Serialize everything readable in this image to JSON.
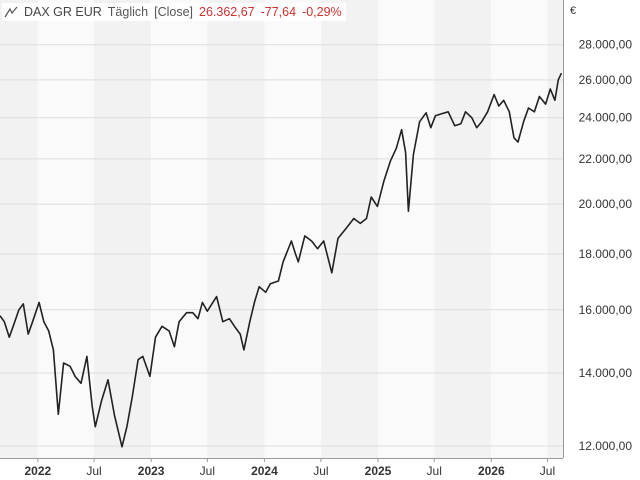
{
  "header": {
    "icon": "line-chart-icon",
    "name": "DAX GR EUR",
    "interval": "Täglich",
    "type": "[Close]",
    "last": "26.362,67",
    "change": "-77,64",
    "change_pct": "-0,29%"
  },
  "colors": {
    "line": "#222222",
    "band": "#f2f2f2",
    "grid": "#dddddd",
    "negative": "#d0312d"
  },
  "chart_data": {
    "type": "line",
    "currency": "€",
    "y_scale": "log",
    "ylim": [
      11700,
      29500
    ],
    "x_range": [
      "2021-09-01",
      "2026-08-20"
    ],
    "y_ticks": [
      {
        "value": 12000,
        "label": "12.000,00"
      },
      {
        "value": 14000,
        "label": "14.000,00"
      },
      {
        "value": 16000,
        "label": "16.000,00"
      },
      {
        "value": 18000,
        "label": "18.000,00"
      },
      {
        "value": 20000,
        "label": "20.000,00"
      },
      {
        "value": 22000,
        "label": "22.000,00"
      },
      {
        "value": 24000,
        "label": "24.000,00"
      },
      {
        "value": 26000,
        "label": "26.000,00"
      },
      {
        "value": 28000,
        "label": "28.000,00"
      }
    ],
    "x_ticks": [
      {
        "date": "2022-01-01",
        "label": "2022",
        "bold": true
      },
      {
        "date": "2022-07-01",
        "label": "Jul",
        "bold": false
      },
      {
        "date": "2023-01-01",
        "label": "2023",
        "bold": true
      },
      {
        "date": "2023-07-01",
        "label": "Jul",
        "bold": false
      },
      {
        "date": "2024-01-01",
        "label": "2024",
        "bold": true
      },
      {
        "date": "2024-07-01",
        "label": "Jul",
        "bold": false
      },
      {
        "date": "2025-01-01",
        "label": "2025",
        "bold": true
      },
      {
        "date": "2025-07-01",
        "label": "Jul",
        "bold": false
      },
      {
        "date": "2026-01-01",
        "label": "2026",
        "bold": true
      },
      {
        "date": "2026-07-01",
        "label": "Jul",
        "bold": false
      }
    ],
    "grid": true,
    "series": [
      {
        "values": [
          [
            "2021-09-01",
            15800
          ],
          [
            "2021-09-15",
            15600
          ],
          [
            "2021-10-01",
            15100
          ],
          [
            "2021-10-15",
            15500
          ],
          [
            "2021-11-01",
            16000
          ],
          [
            "2021-11-15",
            16200
          ],
          [
            "2021-12-01",
            15200
          ],
          [
            "2021-12-15",
            15600
          ],
          [
            "2022-01-05",
            16250
          ],
          [
            "2022-01-20",
            15600
          ],
          [
            "2022-02-05",
            15300
          ],
          [
            "2022-02-20",
            14700
          ],
          [
            "2022-03-08",
            12830
          ],
          [
            "2022-03-25",
            14300
          ],
          [
            "2022-04-15",
            14200
          ],
          [
            "2022-05-01",
            13900
          ],
          [
            "2022-05-20",
            13700
          ],
          [
            "2022-06-08",
            14500
          ],
          [
            "2022-06-25",
            13050
          ],
          [
            "2022-07-05",
            12500
          ],
          [
            "2022-07-25",
            13200
          ],
          [
            "2022-08-15",
            13800
          ],
          [
            "2022-09-05",
            12800
          ],
          [
            "2022-09-29",
            11980
          ],
          [
            "2022-10-15",
            12500
          ],
          [
            "2022-11-01",
            13300
          ],
          [
            "2022-11-20",
            14400
          ],
          [
            "2022-12-05",
            14500
          ],
          [
            "2022-12-28",
            13900
          ],
          [
            "2023-01-15",
            15100
          ],
          [
            "2023-02-05",
            15450
          ],
          [
            "2023-02-28",
            15300
          ],
          [
            "2023-03-17",
            14800
          ],
          [
            "2023-04-01",
            15600
          ],
          [
            "2023-04-25",
            15900
          ],
          [
            "2023-05-15",
            15900
          ],
          [
            "2023-06-01",
            15700
          ],
          [
            "2023-06-15",
            16250
          ],
          [
            "2023-07-01",
            15950
          ],
          [
            "2023-07-31",
            16450
          ],
          [
            "2023-08-20",
            15600
          ],
          [
            "2023-09-10",
            15700
          ],
          [
            "2023-09-30",
            15400
          ],
          [
            "2023-10-15",
            15200
          ],
          [
            "2023-10-27",
            14700
          ],
          [
            "2023-11-15",
            15600
          ],
          [
            "2023-12-01",
            16300
          ],
          [
            "2023-12-15",
            16800
          ],
          [
            "2024-01-05",
            16600
          ],
          [
            "2024-01-20",
            16900
          ],
          [
            "2024-02-15",
            17000
          ],
          [
            "2024-03-01",
            17700
          ],
          [
            "2024-03-28",
            18500
          ],
          [
            "2024-04-10",
            18000
          ],
          [
            "2024-04-19",
            17700
          ],
          [
            "2024-05-10",
            18700
          ],
          [
            "2024-06-01",
            18500
          ],
          [
            "2024-06-20",
            18200
          ],
          [
            "2024-07-10",
            18500
          ],
          [
            "2024-08-05",
            17300
          ],
          [
            "2024-08-25",
            18600
          ],
          [
            "2024-09-20",
            19000
          ],
          [
            "2024-10-15",
            19400
          ],
          [
            "2024-11-05",
            19200
          ],
          [
            "2024-11-25",
            19400
          ],
          [
            "2024-12-10",
            20300
          ],
          [
            "2024-12-30",
            19900
          ],
          [
            "2025-01-20",
            21000
          ],
          [
            "2025-02-10",
            21900
          ],
          [
            "2025-03-01",
            22500
          ],
          [
            "2025-03-18",
            23400
          ],
          [
            "2025-03-31",
            22300
          ],
          [
            "2025-04-09",
            19700
          ],
          [
            "2025-04-25",
            22200
          ],
          [
            "2025-05-15",
            23800
          ],
          [
            "2025-06-05",
            24250
          ],
          [
            "2025-06-20",
            23500
          ],
          [
            "2025-07-05",
            24100
          ],
          [
            "2025-07-25",
            24200
          ],
          [
            "2025-08-15",
            24300
          ],
          [
            "2025-09-05",
            23600
          ],
          [
            "2025-09-25",
            23700
          ],
          [
            "2025-10-10",
            24300
          ],
          [
            "2025-10-30",
            24000
          ],
          [
            "2025-11-15",
            23500
          ],
          [
            "2025-12-01",
            23800
          ],
          [
            "2025-12-20",
            24300
          ],
          [
            "2026-01-10",
            25200
          ],
          [
            "2026-01-25",
            24600
          ],
          [
            "2026-02-10",
            24900
          ],
          [
            "2026-02-28",
            24300
          ],
          [
            "2026-03-15",
            23000
          ],
          [
            "2026-03-28",
            22800
          ],
          [
            "2026-04-15",
            23800
          ],
          [
            "2026-05-01",
            24500
          ],
          [
            "2026-05-20",
            24300
          ],
          [
            "2026-06-05",
            25100
          ],
          [
            "2026-06-25",
            24700
          ],
          [
            "2026-07-10",
            25500
          ],
          [
            "2026-07-25",
            24900
          ],
          [
            "2026-08-05",
            26000
          ],
          [
            "2026-08-15",
            26363
          ]
        ]
      }
    ]
  }
}
